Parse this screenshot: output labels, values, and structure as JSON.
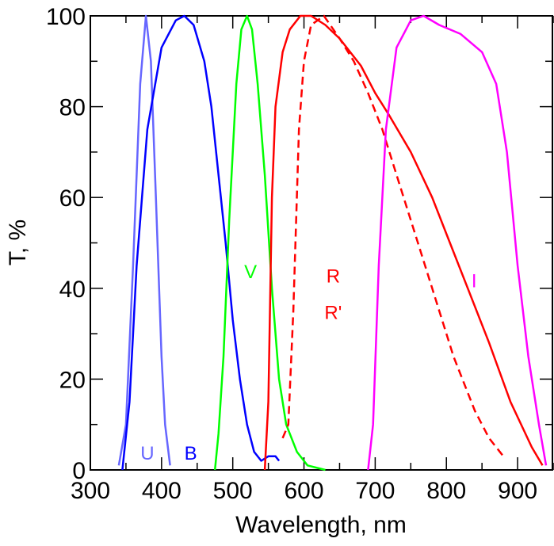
{
  "chart_data": {
    "type": "line",
    "title": "",
    "xlabel": "Wavelength, nm",
    "ylabel": "T, %",
    "xlim": [
      300,
      950
    ],
    "ylim": [
      0,
      100
    ],
    "xticks": [
      300,
      400,
      500,
      600,
      700,
      800,
      900
    ],
    "yticks": [
      0,
      20,
      40,
      60,
      80,
      100
    ],
    "grid": false,
    "series": [
      {
        "name": "U",
        "color": "#6666ff",
        "dash": false,
        "label_pos": [
          380,
          4
        ],
        "x": [
          340,
          350,
          360,
          370,
          378,
          385,
          392,
          400,
          405,
          412
        ],
        "y": [
          1,
          10,
          45,
          85,
          100,
          90,
          60,
          25,
          10,
          1
        ]
      },
      {
        "name": "B",
        "color": "#0000ff",
        "dash": false,
        "label_pos": [
          441,
          4
        ],
        "x": [
          345,
          355,
          365,
          380,
          400,
          420,
          432,
          445,
          460,
          470,
          480,
          490,
          500,
          510,
          520,
          530,
          540,
          550,
          560,
          565
        ],
        "y": [
          0,
          15,
          45,
          75,
          93,
          99,
          100,
          98,
          90,
          80,
          65,
          50,
          33,
          20,
          10,
          4,
          2,
          3,
          3,
          2
        ]
      },
      {
        "name": "V",
        "color": "#00ff00",
        "dash": false,
        "label_pos": [
          525,
          44
        ],
        "x": [
          475,
          480,
          487,
          495,
          505,
          512,
          520,
          527,
          535,
          545,
          555,
          565,
          575,
          590,
          605,
          630
        ],
        "y": [
          0,
          8,
          25,
          55,
          85,
          97,
          100,
          97,
          85,
          65,
          40,
          20,
          10,
          4,
          1,
          0
        ]
      },
      {
        "name": "R",
        "color": "#ff0000",
        "dash": false,
        "label_pos": [
          641,
          43
        ],
        "x": [
          545,
          550,
          555,
          560,
          570,
          580,
          595,
          610,
          630,
          650,
          680,
          700,
          720,
          750,
          780,
          800,
          830,
          860,
          890,
          920,
          935
        ],
        "y": [
          0,
          15,
          60,
          80,
          92,
          97,
          100,
          100,
          98,
          95,
          89,
          83,
          78,
          70,
          60,
          52,
          40,
          28,
          15,
          5,
          1
        ]
      },
      {
        "name": "R'",
        "color": "#ff0000",
        "dash": true,
        "label_pos": [
          641,
          35
        ],
        "x": [
          570,
          578,
          585,
          593,
          600,
          610,
          628,
          650,
          670,
          690,
          710,
          730,
          750,
          780,
          810,
          840,
          860,
          880
        ],
        "y": [
          7,
          10,
          35,
          75,
          90,
          98,
          100,
          95,
          90,
          83,
          75,
          65,
          55,
          40,
          25,
          13,
          7,
          3
        ]
      },
      {
        "name": "I",
        "color": "#ff00ff",
        "dash": false,
        "label_pos": [
          839,
          42
        ],
        "x": [
          690,
          697,
          705,
          715,
          730,
          750,
          768,
          790,
          820,
          850,
          870,
          885,
          900,
          915,
          930,
          940
        ],
        "y": [
          0,
          10,
          45,
          75,
          93,
          99,
          100,
          98,
          96,
          92,
          85,
          70,
          45,
          25,
          10,
          1
        ]
      }
    ]
  }
}
